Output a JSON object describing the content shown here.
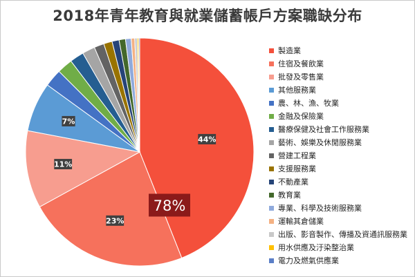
{
  "chart_data": {
    "type": "pie",
    "title": "2018年青年教育與就業儲蓄帳戶方案職缺分布",
    "legend_position": "right",
    "slices": [
      {
        "label": "製造業",
        "value": 44,
        "color": "#f4503b"
      },
      {
        "label": "住宿及餐飲業",
        "value": 23,
        "color": "#f6715c"
      },
      {
        "label": "批發及零售業",
        "value": 11,
        "color": "#f79d8f"
      },
      {
        "label": "其他服務業",
        "value": 7,
        "color": "#5b9bd5"
      },
      {
        "label": "農、林、漁、牧業",
        "value": 2.5,
        "color": "#4472c4"
      },
      {
        "label": "金融及保險業",
        "value": 2.2,
        "color": "#70ad47"
      },
      {
        "label": "醫療保健及社會工作服務業",
        "value": 2.0,
        "color": "#255e91"
      },
      {
        "label": "藝術、娛樂及休閒服務業",
        "value": 1.8,
        "color": "#a5a5a5"
      },
      {
        "label": "營建工程業",
        "value": 1.4,
        "color": "#636363"
      },
      {
        "label": "支援服務業",
        "value": 1.2,
        "color": "#997300"
      },
      {
        "label": "不動產業",
        "value": 1.0,
        "color": "#264478"
      },
      {
        "label": "教育業",
        "value": 0.9,
        "color": "#43682b"
      },
      {
        "label": "專業、科學及技術服務業",
        "value": 0.8,
        "color": "#8faadc"
      },
      {
        "label": "運輸其倉儲業",
        "value": 0.5,
        "color": "#f4b183"
      },
      {
        "label": "出版、影音製作、傳播及資通訊服務業",
        "value": 0.35,
        "color": "#c9c9c9"
      },
      {
        "label": "用水供應及汙染整治業",
        "value": 0.2,
        "color": "#ffc000"
      },
      {
        "label": "電力及燃氣供應業",
        "value": 0.15,
        "color": "#5b7fc7"
      }
    ],
    "data_labels": [
      "44%",
      "23%",
      "11%",
      "7%"
    ],
    "callout": "78%"
  }
}
